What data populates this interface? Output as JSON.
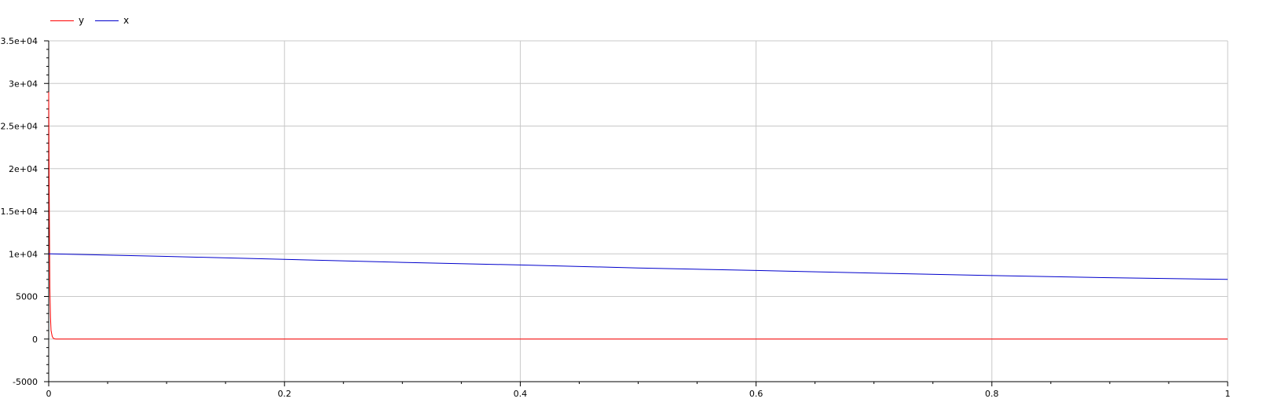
{
  "colors": {
    "background": "#ffffff",
    "grid": "#c8c8c8",
    "axis": "#000000"
  },
  "chart_data": {
    "type": "line",
    "title": "",
    "xlabel": "",
    "ylabel": "",
    "xlim": [
      0,
      1
    ],
    "ylim": [
      -5000,
      35000
    ],
    "grid": true,
    "legend_position": "top-left",
    "x_ticks": [
      0,
      0.2,
      0.4,
      0.6,
      0.8,
      1
    ],
    "x_tick_labels": [
      "0",
      "0.2",
      "0.4",
      "0.6",
      "0.8",
      "1"
    ],
    "y_ticks": [
      -5000,
      0,
      5000,
      10000,
      15000,
      20000,
      25000,
      30000,
      35000
    ],
    "y_tick_labels": [
      "-5000",
      "0",
      "5000",
      "1e+04",
      "1.5e+04",
      "2e+04",
      "2.5e+04",
      "3e+04",
      "3.5e+04"
    ],
    "series": [
      {
        "name": "y",
        "color": "#ff0000",
        "x": [
          0,
          0.0005,
          0.001,
          0.0015,
          0.002,
          0.003,
          0.004,
          0.006,
          1
        ],
        "y": [
          29000,
          15000,
          6000,
          2500,
          1000,
          300,
          80,
          0,
          0
        ]
      },
      {
        "name": "x",
        "color": "#0000cc",
        "x": [
          0,
          0.002,
          0.1,
          0.2,
          0.3,
          0.4,
          0.5,
          0.6,
          0.7,
          0.8,
          0.9,
          1
        ],
        "y": [
          10000,
          10000,
          9700,
          9350,
          9000,
          8700,
          8350,
          8050,
          7750,
          7450,
          7200,
          7000
        ]
      }
    ]
  }
}
